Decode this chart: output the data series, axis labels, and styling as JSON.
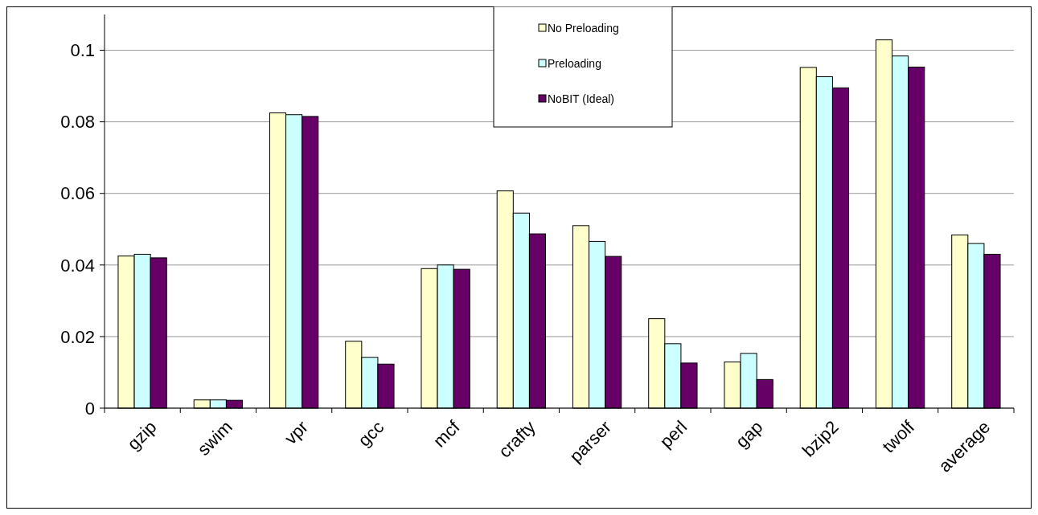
{
  "chart_data": {
    "type": "bar",
    "categories": [
      "gzip",
      "swim",
      "vpr",
      "gcc",
      "mcf",
      "crafty",
      "parser",
      "perl",
      "gap",
      "bzip2",
      "twolf",
      "average"
    ],
    "series": [
      {
        "name": "No Preloading",
        "color": "#ffffcc",
        "values": [
          0.0425,
          0.0023,
          0.0825,
          0.0187,
          0.039,
          0.0607,
          0.051,
          0.025,
          0.0129,
          0.0952,
          0.1029,
          0.0484
        ]
      },
      {
        "name": "Preloading",
        "color": "#ccffff",
        "values": [
          0.043,
          0.0023,
          0.082,
          0.0142,
          0.04,
          0.0545,
          0.0466,
          0.018,
          0.0153,
          0.0926,
          0.0984,
          0.046
        ]
      },
      {
        "name": "NoBIT (Ideal)",
        "color": "#660066",
        "values": [
          0.042,
          0.0022,
          0.0815,
          0.0123,
          0.0388,
          0.0487,
          0.0424,
          0.0126,
          0.008,
          0.0895,
          0.0953,
          0.043
        ]
      }
    ],
    "ylim": [
      0,
      0.11
    ],
    "yticks": [
      0,
      0.02,
      0.04,
      0.06,
      0.08,
      0.1
    ],
    "grid": "y",
    "legend": "top"
  }
}
